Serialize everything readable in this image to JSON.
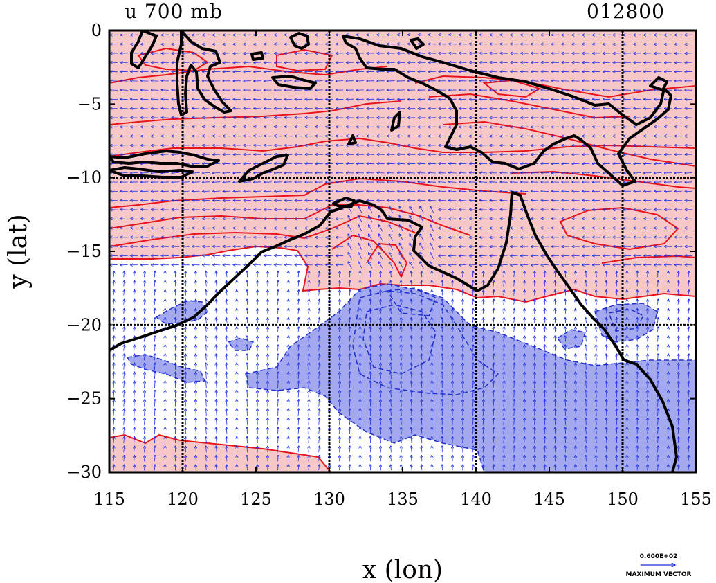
{
  "chart_data": {
    "type": "contour-map",
    "field_title": "u 700 mb",
    "date_label": "012800",
    "xlabel": "x (lon)",
    "ylabel": "y (lat)",
    "xlim": [
      115,
      155
    ],
    "ylim": [
      -30,
      0
    ],
    "x_ticks": [
      115,
      120,
      125,
      130,
      135,
      140,
      145,
      150,
      155
    ],
    "y_ticks": [
      0,
      -5,
      -10,
      -15,
      -20,
      -25,
      -30
    ],
    "x_tick_labels": [
      "115",
      "120",
      "125",
      "130",
      "135",
      "140",
      "145",
      "150",
      "155"
    ],
    "y_tick_labels": [
      "0",
      "−5",
      "−10",
      "−15",
      "−20",
      "−25",
      "−30"
    ],
    "grid_lon": [
      120,
      130,
      140,
      150
    ],
    "grid_lat": [
      -10,
      -20
    ],
    "positive_shading_color": "#f8c8c8",
    "positive_contour_color": "#e8141c",
    "negative_shading_color": "#a4a8ee",
    "negative_contour_color": "#2030cc",
    "vector_color": "#1a2ee0",
    "coastline_color": "#000000",
    "vector_legend": {
      "value": "0.600E+02",
      "label": "MAXIMUM VECTOR"
    }
  }
}
